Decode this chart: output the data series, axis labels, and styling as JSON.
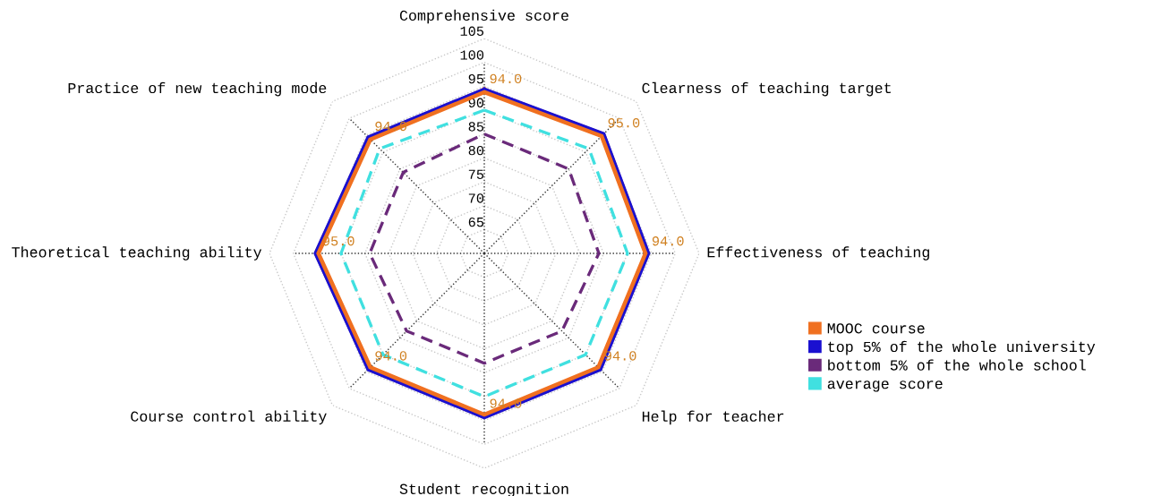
{
  "chart_data": {
    "type": "radar",
    "categories": [
      "Comprehensive score",
      "Clearness of teaching target",
      "Effectiveness of teaching",
      "Help for teacher",
      "Student recognition",
      "Course control ability",
      "Theoretical teaching ability",
      "Practice of new teaching mode"
    ],
    "series": [
      {
        "name": "MOOC course",
        "color": "#f07020",
        "line_style": "solid",
        "values": [
          94,
          95,
          94,
          94,
          94,
          94,
          95,
          94
        ],
        "value_labels": [
          "94.0",
          "95.0",
          "94.0",
          "94.0",
          "94.0",
          "94.0",
          "95.0",
          "94.0"
        ]
      },
      {
        "name": "top 5% of the whole university",
        "color": "#1a10d0",
        "line_style": "solid",
        "values": [
          94.5,
          95.5,
          94.5,
          94.5,
          94.5,
          94.5,
          95.5,
          94.5
        ]
      },
      {
        "name": "bottom 5% of the whole school",
        "color": "#6a2a7a",
        "line_style": "dashed",
        "values": [
          85,
          85,
          84,
          83,
          83,
          83,
          84,
          84
        ]
      },
      {
        "name": "average score",
        "color": "#40e0e0",
        "line_style": "dashed",
        "values": [
          90,
          91,
          90,
          90,
          90,
          90,
          90,
          91
        ]
      }
    ],
    "ylim": [
      60,
      105
    ],
    "yticks": [
      65,
      70,
      75,
      80,
      85,
      90,
      95,
      100,
      105
    ],
    "grid": true,
    "legend": "right",
    "marker": "none"
  }
}
